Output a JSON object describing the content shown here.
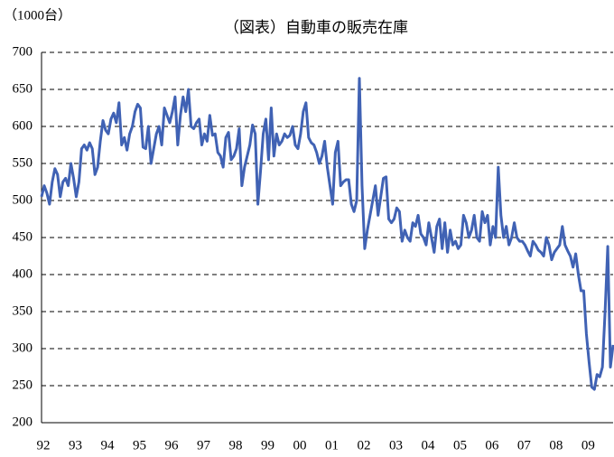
{
  "chart_data": {
    "type": "line",
    "title": "（図表）自動車の販売在庫",
    "y_label": "（1000台）",
    "categories": [
      "92",
      null,
      null,
      null,
      null,
      null,
      null,
      null,
      null,
      null,
      null,
      null,
      "93",
      null,
      null,
      null,
      null,
      null,
      null,
      null,
      null,
      null,
      null,
      null,
      "94",
      null,
      null,
      null,
      null,
      null,
      null,
      null,
      null,
      null,
      null,
      null,
      "95",
      null,
      null,
      null,
      null,
      null,
      null,
      null,
      null,
      null,
      null,
      null,
      "96",
      null,
      null,
      null,
      null,
      null,
      null,
      null,
      null,
      null,
      null,
      null,
      "97",
      null,
      null,
      null,
      null,
      null,
      null,
      null,
      null,
      null,
      null,
      null,
      "98",
      null,
      null,
      null,
      null,
      null,
      null,
      null,
      null,
      null,
      null,
      null,
      "99",
      null,
      null,
      null,
      null,
      null,
      null,
      null,
      null,
      null,
      null,
      null,
      "00",
      null,
      null,
      null,
      null,
      null,
      null,
      null,
      null,
      null,
      null,
      null,
      "01",
      null,
      null,
      null,
      null,
      null,
      null,
      null,
      null,
      null,
      null,
      null,
      "02",
      null,
      null,
      null,
      null,
      null,
      null,
      null,
      null,
      null,
      null,
      null,
      "03",
      null,
      null,
      null,
      null,
      null,
      null,
      null,
      null,
      null,
      null,
      null,
      "04",
      null,
      null,
      null,
      null,
      null,
      null,
      null,
      null,
      null,
      null,
      null,
      "05",
      null,
      null,
      null,
      null,
      null,
      null,
      null,
      null,
      null,
      null,
      null,
      "06",
      null,
      null,
      null,
      null,
      null,
      null,
      null,
      null,
      null,
      null,
      null,
      "07",
      null,
      null,
      null,
      null,
      null,
      null,
      null,
      null,
      null,
      null,
      null,
      "08",
      null,
      null,
      null,
      null,
      null,
      null,
      null,
      null,
      null,
      null,
      null,
      "09",
      null,
      null,
      null,
      null,
      null,
      null,
      null,
      null,
      null,
      null
    ],
    "series": [
      {
        "name": "自動車の販売在庫",
        "color": "#4062b4",
        "values": [
          505,
          520,
          510,
          495,
          525,
          543,
          535,
          505,
          525,
          530,
          520,
          550,
          530,
          505,
          525,
          570,
          575,
          568,
          578,
          570,
          535,
          545,
          580,
          608,
          595,
          590,
          610,
          618,
          605,
          632,
          575,
          585,
          568,
          590,
          600,
          620,
          630,
          625,
          572,
          570,
          600,
          550,
          570,
          590,
          600,
          575,
          625,
          615,
          605,
          620,
          640,
          575,
          615,
          640,
          620,
          650,
          600,
          597,
          605,
          610,
          575,
          590,
          580,
          615,
          588,
          590,
          565,
          560,
          545,
          585,
          592,
          555,
          560,
          570,
          597,
          520,
          545,
          560,
          575,
          602,
          590,
          495,
          540,
          590,
          610,
          555,
          625,
          560,
          590,
          575,
          580,
          590,
          585,
          588,
          600,
          575,
          570,
          590,
          620,
          632,
          585,
          578,
          575,
          565,
          550,
          560,
          580,
          545,
          520,
          495,
          565,
          580,
          520,
          525,
          528,
          528,
          495,
          485,
          500,
          665,
          520,
          435,
          460,
          480,
          500,
          520,
          480,
          505,
          530,
          532,
          475,
          470,
          475,
          490,
          485,
          445,
          460,
          450,
          445,
          470,
          465,
          480,
          455,
          450,
          440,
          470,
          450,
          430,
          465,
          475,
          435,
          470,
          430,
          460,
          440,
          445,
          435,
          440,
          480,
          470,
          450,
          460,
          480,
          450,
          445,
          485,
          470,
          480,
          440,
          465,
          450,
          545,
          480,
          450,
          465,
          440,
          450,
          470,
          450,
          445,
          445,
          440,
          432,
          425,
          445,
          440,
          433,
          430,
          425,
          450,
          440,
          420,
          430,
          435,
          440,
          465,
          440,
          432,
          425,
          410,
          428,
          400,
          378,
          378,
          320,
          282,
          248,
          245,
          265,
          262,
          275,
          350,
          438,
          275,
          305
        ]
      }
    ],
    "ylim": [
      200,
      700
    ],
    "yticks": [
      200,
      250,
      300,
      350,
      400,
      450,
      500,
      550,
      600,
      650,
      700
    ],
    "grid": true
  }
}
